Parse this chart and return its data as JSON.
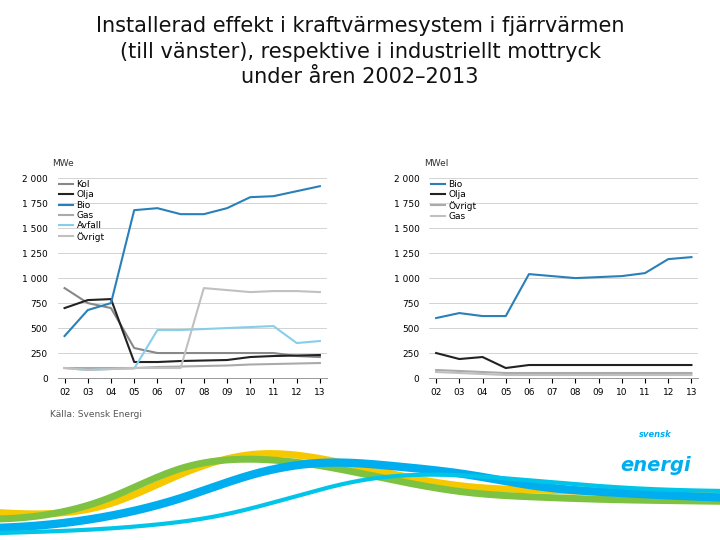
{
  "title": "Installerad effekt i kraftvärmesystem i fjärrvärmen\n(till vänster), respektive i industriellt mottryck\nunder åren 2002–2013",
  "years": [
    2002,
    2003,
    2004,
    2005,
    2006,
    2007,
    2008,
    2009,
    2010,
    2011,
    2012,
    2013
  ],
  "left_chart": {
    "ylabel": "MWe",
    "ylim": [
      0,
      2000
    ],
    "yticks": [
      0,
      250,
      500,
      750,
      1000,
      1250,
      1500,
      1750,
      2000
    ],
    "ytick_labels": [
      "0",
      "250",
      "500",
      "750",
      "1 000",
      "1 250",
      "1 500",
      "1 750",
      "2 000"
    ],
    "series": {
      "Kol": [
        900,
        750,
        700,
        300,
        250,
        250,
        250,
        250,
        250,
        250,
        220,
        210
      ],
      "Olja": [
        700,
        780,
        790,
        160,
        160,
        170,
        175,
        180,
        210,
        220,
        225,
        230
      ],
      "Bio": [
        420,
        680,
        750,
        1680,
        1700,
        1640,
        1640,
        1700,
        1810,
        1820,
        1870,
        1920
      ],
      "Gas": [
        100,
        100,
        100,
        100,
        110,
        115,
        120,
        125,
        135,
        140,
        145,
        150
      ],
      "Avfall": [
        100,
        80,
        90,
        95,
        480,
        480,
        490,
        500,
        510,
        520,
        350,
        370
      ],
      "Övrigt": [
        100,
        80,
        90,
        100,
        100,
        100,
        900,
        880,
        860,
        870,
        870,
        860
      ]
    },
    "colors": {
      "Kol": "#888888",
      "Olja": "#222222",
      "Bio": "#2980b9",
      "Gas": "#aaaaaa",
      "Avfall": "#87ceeb",
      "Övrigt": "#c0c0c0"
    },
    "legend_order": [
      "Kol",
      "Olja",
      "Bio",
      "Gas",
      "Avfall",
      "Övrigt"
    ]
  },
  "right_chart": {
    "ylabel": "MWel",
    "ylim": [
      0,
      2000
    ],
    "yticks": [
      0,
      250,
      500,
      750,
      1000,
      1250,
      1500,
      1750,
      2000
    ],
    "ytick_labels": [
      "0",
      "250",
      "500",
      "750",
      "1 000",
      "1 250",
      "1 500",
      "1 750",
      "2 000"
    ],
    "series": {
      "Bio": [
        600,
        650,
        620,
        620,
        1040,
        1020,
        1000,
        1010,
        1020,
        1050,
        1190,
        1210
      ],
      "Olja": [
        250,
        190,
        210,
        100,
        130,
        130,
        130,
        130,
        130,
        130,
        130,
        130
      ],
      "Övrigt": [
        80,
        70,
        60,
        50,
        50,
        50,
        50,
        50,
        50,
        50,
        50,
        50
      ],
      "Gas": [
        60,
        50,
        40,
        30,
        30,
        30,
        30,
        30,
        30,
        30,
        30,
        30
      ]
    },
    "colors": {
      "Bio": "#2980b9",
      "Olja": "#222222",
      "Övrigt": "#aaaaaa",
      "Gas": "#c0c0c0"
    },
    "legend_order": [
      "Bio",
      "Olja",
      "Övrigt",
      "Gas"
    ]
  },
  "source_text": "Källa: Svensk Energi",
  "background_color": "#ffffff",
  "title_fontsize": 15,
  "axis_fontsize": 6.5,
  "legend_fontsize": 6.5,
  "source_fontsize": 6.5,
  "tick_label_fontsize": 6.5,
  "wave_colors": [
    "#f5c800",
    "#7dc241",
    "#00aeef"
  ],
  "logo_color": "#00aeef"
}
